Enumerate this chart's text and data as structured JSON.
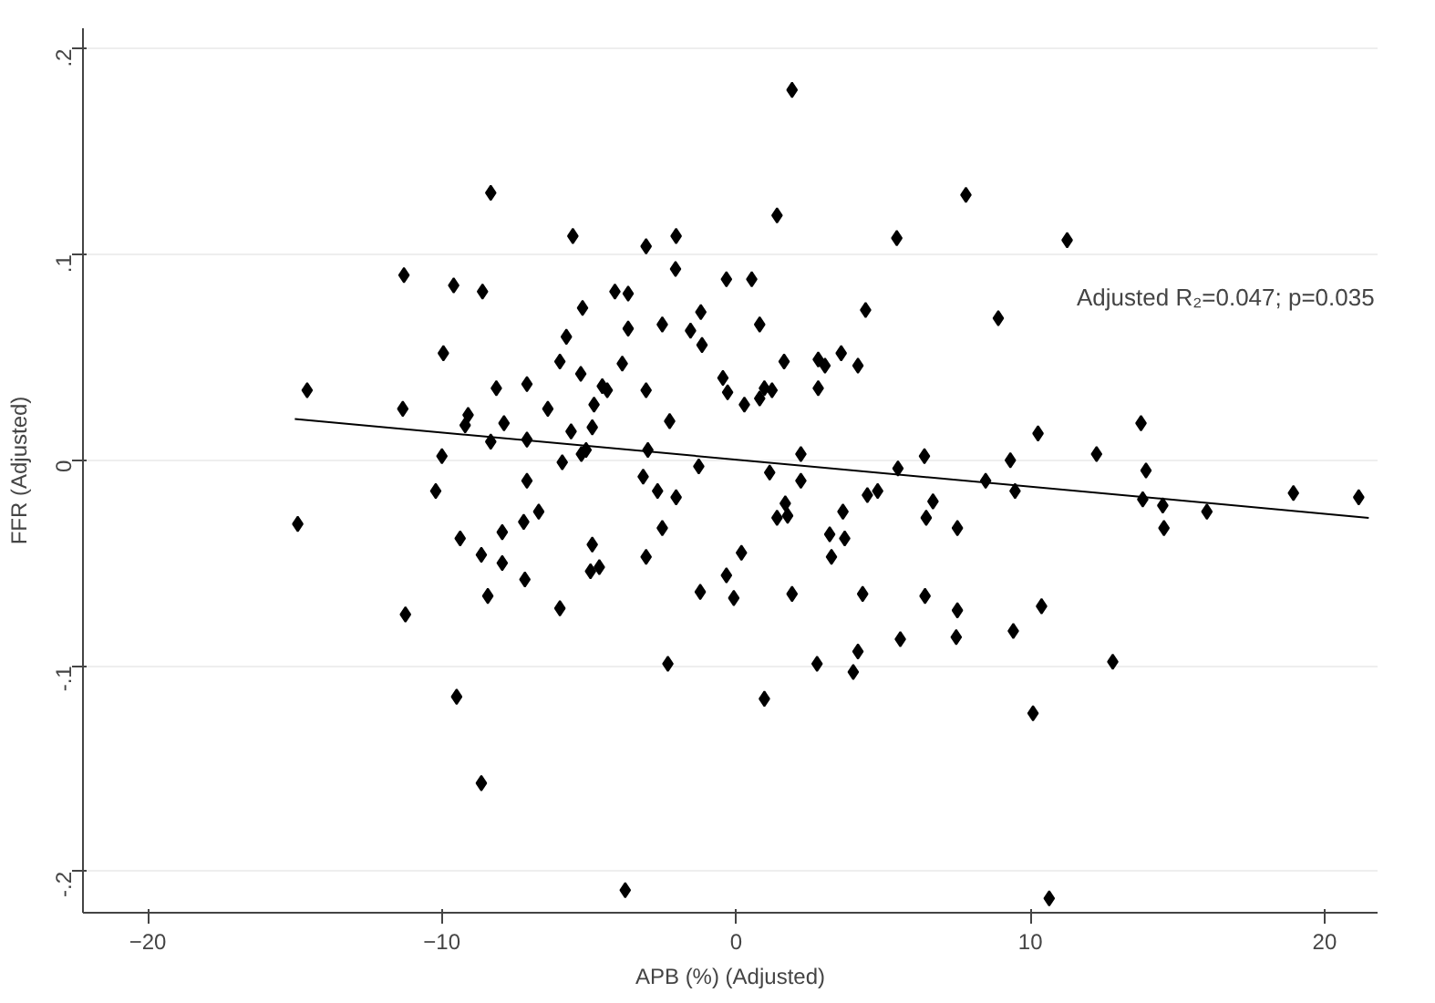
{
  "chart_data": {
    "type": "scatter",
    "xlabel": "APB (%) (Adjusted)",
    "ylabel": "FFR (Adjusted)",
    "annotations": [
      "Adjusted R₂=0.047; p=0.035"
    ],
    "xlim": [
      -22.2,
      21.8
    ],
    "ylim": [
      -0.22,
      0.21
    ],
    "xticks": [
      -20,
      -10,
      0,
      10,
      20
    ],
    "yticks": [
      {
        "value": -0.2,
        "label": "-.2"
      },
      {
        "value": -0.1,
        "label": "-.1"
      },
      {
        "value": 0,
        "label": "0"
      },
      {
        "value": 0.1,
        "label": ".1"
      },
      {
        "value": 0.2,
        "label": ".2"
      }
    ],
    "grid": "y",
    "series": [
      {
        "marker": "diamond",
        "color": "#000000",
        "x": [
          -14.58,
          -11.29,
          -11.33,
          -10.0,
          -9.95,
          -9.6,
          -8.62,
          -8.34,
          -8.15,
          -9.11,
          -9.21,
          -7.89,
          -8.34,
          -7.11,
          -7.11,
          -6.4,
          -5.99,
          -5.77,
          -5.55,
          -5.22,
          -5.28,
          -5.61,
          -5.91,
          -5.26,
          -5.1,
          -4.89,
          -4.83,
          -4.55,
          -4.38,
          -4.12,
          -3.67,
          -3.87,
          -3.67,
          -3.06,
          -3.06,
          -3.0,
          -2.51,
          -2.26,
          -2.04,
          -2.06,
          -1.55,
          -1.2,
          -1.16,
          -1.27,
          -0.33,
          -0.45,
          -0.29,
          -3.16,
          1.9,
          1.39,
          5.46,
          7.81,
          11.25,
          0.53,
          0.8,
          4.4,
          8.91,
          0.28,
          0.8,
          0.96,
          1.22,
          1.63,
          2.79,
          3.02,
          2.79,
          3.57,
          4.14,
          10.26,
          13.76,
          2.2,
          6.4,
          12.25,
          9.32,
          5.5,
          13.93,
          1.14,
          -14.9,
          -11.24,
          -10.21,
          -9.38,
          -9.5,
          -8.66,
          -8.44,
          -8.66,
          -7.95,
          -7.95,
          -7.11,
          -7.22,
          -6.71,
          -7.18,
          -5.99,
          -4.89,
          -4.95,
          -4.65,
          -3.77,
          -2.67,
          -2.04,
          -2.51,
          -3.06,
          -2.32,
          -1.22,
          -0.33,
          -0.08,
          0.18,
          2.2,
          1.67,
          1.39,
          1.75,
          1.9,
          0.96,
          2.75,
          3.18,
          3.24,
          3.63,
          3.69,
          4.14,
          3.98,
          4.3,
          4.46,
          4.81,
          5.58,
          6.46,
          6.69,
          6.42,
          7.52,
          7.52,
          7.48,
          8.48,
          9.48,
          9.42,
          10.09,
          10.38,
          10.64,
          12.8,
          13.82,
          14.5,
          14.54,
          16.0,
          18.94,
          21.16
        ],
        "values": [
          0.034,
          0.09,
          0.025,
          0.002,
          0.052,
          0.085,
          0.082,
          0.13,
          0.035,
          0.022,
          0.017,
          0.018,
          0.009,
          0.037,
          0.01,
          0.025,
          0.048,
          0.06,
          0.109,
          0.074,
          0.042,
          0.014,
          -0.001,
          0.003,
          0.005,
          0.016,
          0.027,
          0.036,
          0.034,
          0.082,
          0.081,
          0.047,
          0.064,
          0.104,
          0.034,
          0.005,
          0.066,
          0.019,
          0.109,
          0.093,
          0.063,
          0.072,
          0.056,
          -0.003,
          0.088,
          0.04,
          0.033,
          -0.008,
          0.18,
          0.119,
          0.108,
          0.129,
          0.107,
          0.088,
          0.066,
          0.073,
          0.069,
          0.027,
          0.03,
          0.035,
          0.034,
          0.048,
          0.049,
          0.046,
          0.035,
          0.052,
          0.046,
          0.013,
          0.018,
          0.003,
          0.002,
          0.003,
          0.0,
          -0.004,
          -0.005,
          -0.006,
          -0.031,
          -0.075,
          -0.015,
          -0.038,
          -0.115,
          -0.046,
          -0.066,
          -0.157,
          -0.035,
          -0.05,
          -0.01,
          -0.03,
          -0.025,
          -0.058,
          -0.072,
          -0.041,
          -0.054,
          -0.052,
          -0.209,
          -0.015,
          -0.018,
          -0.033,
          -0.047,
          -0.099,
          -0.064,
          -0.056,
          -0.067,
          -0.045,
          -0.01,
          -0.021,
          -0.028,
          -0.027,
          -0.065,
          -0.116,
          -0.099,
          -0.036,
          -0.047,
          -0.025,
          -0.038,
          -0.093,
          -0.103,
          -0.065,
          -0.017,
          -0.015,
          -0.087,
          -0.028,
          -0.02,
          -0.066,
          -0.033,
          -0.073,
          -0.086,
          -0.01,
          -0.015,
          -0.083,
          -0.123,
          -0.071,
          -0.213,
          -0.098,
          -0.019,
          -0.022,
          -0.033,
          -0.025,
          -0.016,
          -0.018
        ]
      },
      {
        "type": "line",
        "color": "#000000",
        "x": [
          -15,
          21.5
        ],
        "values": [
          0.02,
          -0.028
        ]
      }
    ]
  }
}
